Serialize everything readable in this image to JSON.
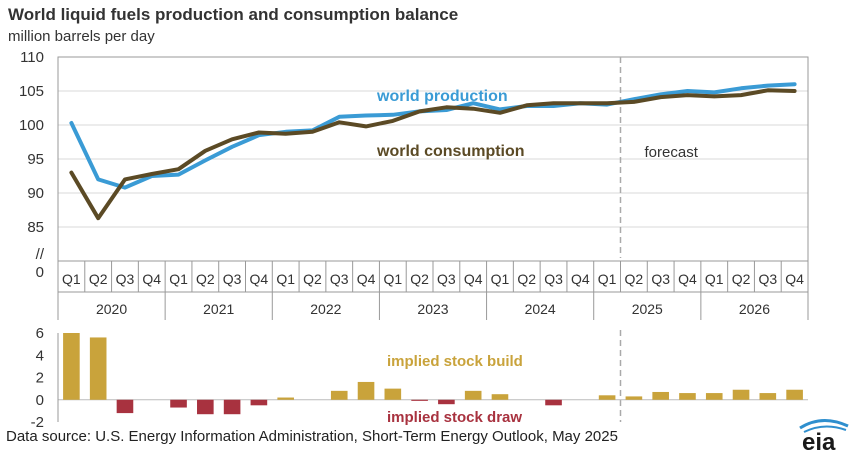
{
  "title": "World liquid fuels production and consumption balance",
  "subtitle": "million barrels per day",
  "source": "Data source: U.S. Energy Information Administration, Short-Term Energy Outlook, May 2025",
  "logo_text": "eia",
  "colors": {
    "production": "#3a9bd5",
    "consumption": "#5b4a25",
    "build": "#c9a33b",
    "draw": "#a8323f",
    "grid": "#d9d9d9",
    "axis": "#999999",
    "forecast_line": "#aaaaaa"
  },
  "chart_data": [
    {
      "type": "line",
      "quarters": [
        "Q1",
        "Q2",
        "Q3",
        "Q4",
        "Q1",
        "Q2",
        "Q3",
        "Q4",
        "Q1",
        "Q2",
        "Q3",
        "Q4",
        "Q1",
        "Q2",
        "Q3",
        "Q4",
        "Q1",
        "Q2",
        "Q3",
        "Q4",
        "Q1",
        "Q2",
        "Q3",
        "Q4",
        "Q1",
        "Q2",
        "Q3",
        "Q4"
      ],
      "years": [
        "2020",
        "2021",
        "2022",
        "2023",
        "2024",
        "2025",
        "2026"
      ],
      "series": [
        {
          "name": "world production",
          "values": [
            100.3,
            92.0,
            90.8,
            92.5,
            92.7,
            94.8,
            96.8,
            98.5,
            99.0,
            99.2,
            101.2,
            101.4,
            101.5,
            102.0,
            102.2,
            103.2,
            102.3,
            102.8,
            102.8,
            103.2,
            103.0,
            103.8,
            104.5,
            105.0,
            104.8,
            105.4,
            105.8,
            106.0
          ]
        },
        {
          "name": "world consumption",
          "values": [
            93.0,
            86.3,
            92.0,
            92.8,
            93.5,
            96.2,
            97.9,
            98.9,
            98.7,
            99.0,
            100.4,
            99.8,
            100.6,
            102.0,
            102.6,
            102.4,
            101.8,
            102.9,
            103.2,
            103.2,
            103.2,
            103.4,
            104.1,
            104.4,
            104.2,
            104.4,
            105.1,
            105.0
          ]
        }
      ],
      "y_ticks": [
        "110",
        "105",
        "100",
        "95",
        "90",
        "85",
        "//",
        "0"
      ],
      "ylim": [
        85,
        110
      ],
      "forecast_label": "forecast",
      "forecast_start_index": 21
    },
    {
      "type": "bar",
      "values": [
        6.0,
        5.6,
        -1.2,
        0.0,
        -0.7,
        -1.3,
        -1.3,
        -0.5,
        0.2,
        0.0,
        0.8,
        1.6,
        1.0,
        -0.1,
        -0.4,
        0.8,
        0.5,
        0.0,
        -0.5,
        0.0,
        0.4,
        0.3,
        0.7,
        0.6,
        0.6,
        0.9,
        0.6,
        0.9
      ],
      "y_ticks": [
        "6",
        "4",
        "2",
        "0",
        "-2"
      ],
      "ylim": [
        -2,
        6
      ],
      "build_label": "implied stock  build",
      "draw_label": "implied stock draw"
    }
  ]
}
